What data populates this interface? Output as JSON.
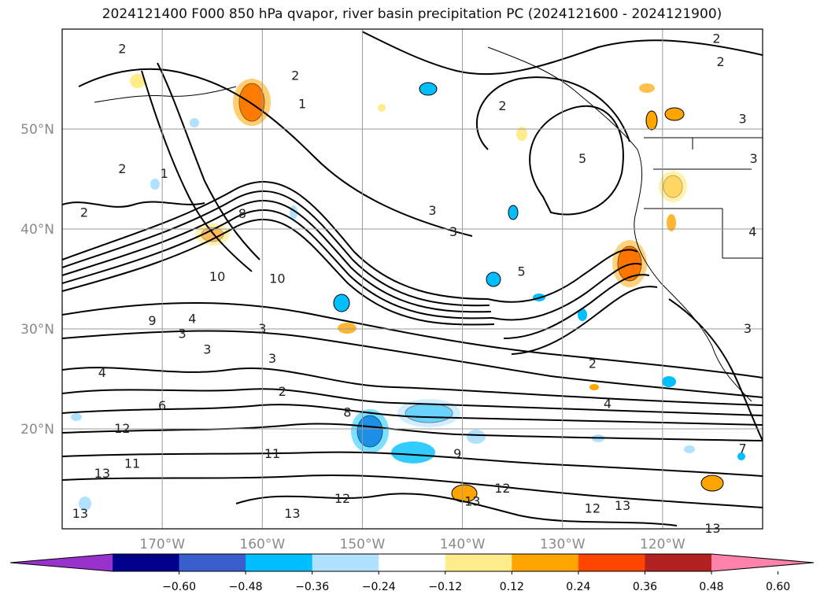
{
  "title": "2024121400 F000 850 hPa qvapor, river basin precipitation PC (2024121600 - 2024121900)",
  "chart_data": {
    "type": "contour-map",
    "title": "2024121400 F000 850 hPa qvapor, river basin precipitation PC (2024121600 - 2024121900)",
    "lat_ticks": [
      "20°N",
      "30°N",
      "40°N",
      "50°N"
    ],
    "lat_values": [
      20,
      30,
      40,
      50
    ],
    "lon_ticks": [
      "170°W",
      "160°W",
      "150°W",
      "140°W",
      "130°W",
      "120°W"
    ],
    "lon_values": [
      -170,
      -160,
      -150,
      -140,
      -130,
      -120
    ],
    "extent": {
      "lon": [
        -180,
        -110
      ],
      "lat": [
        10,
        60
      ]
    },
    "grid": true,
    "colorbar": {
      "ticks": [
        "−0.60",
        "−0.48",
        "−0.36",
        "−0.24",
        "−0.12",
        "0.12",
        "0.24",
        "0.36",
        "0.48",
        "0.60"
      ],
      "colors": [
        "#9932cc",
        "#00008b",
        "#3a5fcd",
        "#00bfff",
        "#b0e2ff",
        "#ffffff",
        "#ffec8b",
        "#ffa500",
        "#ff4500",
        "#b22222",
        "#ff82ab"
      ],
      "extend": "both"
    },
    "contour_labels": [
      {
        "text": "2",
        "lon": -174.0,
        "lat": 58.0
      },
      {
        "text": "2",
        "lon": -156.7,
        "lat": 55.3
      },
      {
        "text": "1",
        "lon": -156.0,
        "lat": 52.5
      },
      {
        "text": "2",
        "lon": -136.0,
        "lat": 52.3
      },
      {
        "text": "2",
        "lon": -114.6,
        "lat": 59.0
      },
      {
        "text": "2",
        "lon": -114.2,
        "lat": 56.7
      },
      {
        "text": "3",
        "lon": -112.0,
        "lat": 51.0
      },
      {
        "text": "5",
        "lon": -128.0,
        "lat": 47.0
      },
      {
        "text": "3",
        "lon": -110.9,
        "lat": 47.0
      },
      {
        "text": "2",
        "lon": -174.0,
        "lat": 46.0
      },
      {
        "text": "2",
        "lon": -177.8,
        "lat": 41.6
      },
      {
        "text": "1",
        "lon": -169.8,
        "lat": 45.5
      },
      {
        "text": "3",
        "lon": -143.0,
        "lat": 41.8
      },
      {
        "text": "3",
        "lon": -140.9,
        "lat": 39.7
      },
      {
        "text": "8",
        "lon": -162.0,
        "lat": 41.5
      },
      {
        "text": "10",
        "lon": -164.5,
        "lat": 35.2
      },
      {
        "text": "10",
        "lon": -158.5,
        "lat": 35.0
      },
      {
        "text": "5",
        "lon": -134.1,
        "lat": 35.7
      },
      {
        "text": "4",
        "lon": -111.0,
        "lat": 39.7
      },
      {
        "text": "9",
        "lon": -171.0,
        "lat": 30.8
      },
      {
        "text": "4",
        "lon": -167.0,
        "lat": 31.0
      },
      {
        "text": "3",
        "lon": -168.0,
        "lat": 29.5
      },
      {
        "text": "3",
        "lon": -160.0,
        "lat": 30.0
      },
      {
        "text": "3",
        "lon": -165.5,
        "lat": 27.9
      },
      {
        "text": "3",
        "lon": -159.0,
        "lat": 27.0
      },
      {
        "text": "2",
        "lon": -158.0,
        "lat": 23.7
      },
      {
        "text": "4",
        "lon": -176.0,
        "lat": 25.6
      },
      {
        "text": "6",
        "lon": -170.0,
        "lat": 22.3
      },
      {
        "text": "12",
        "lon": -174.0,
        "lat": 20.0
      },
      {
        "text": "11",
        "lon": -173.0,
        "lat": 16.5
      },
      {
        "text": "11",
        "lon": -159.0,
        "lat": 17.5
      },
      {
        "text": "12",
        "lon": -152.0,
        "lat": 13.0
      },
      {
        "text": "13",
        "lon": -157.0,
        "lat": 11.5
      },
      {
        "text": "13",
        "lon": -176.0,
        "lat": 15.5
      },
      {
        "text": "13",
        "lon": -178.2,
        "lat": 11.5
      },
      {
        "text": "13",
        "lon": -139.0,
        "lat": 12.7
      },
      {
        "text": "12",
        "lon": -136.0,
        "lat": 14.0
      },
      {
        "text": "12",
        "lon": -127.0,
        "lat": 12.0
      },
      {
        "text": "13",
        "lon": -124.0,
        "lat": 12.3
      },
      {
        "text": "13",
        "lon": -115.0,
        "lat": 10.0
      },
      {
        "text": "2",
        "lon": -127.0,
        "lat": 26.5
      },
      {
        "text": "4",
        "lon": -125.5,
        "lat": 22.5
      },
      {
        "text": "8",
        "lon": -151.5,
        "lat": 21.6
      },
      {
        "text": "9",
        "lon": -140.5,
        "lat": 17.5
      },
      {
        "text": "3",
        "lon": -111.5,
        "lat": 30.0
      },
      {
        "text": "7",
        "lon": -112.0,
        "lat": 18.0
      }
    ]
  }
}
